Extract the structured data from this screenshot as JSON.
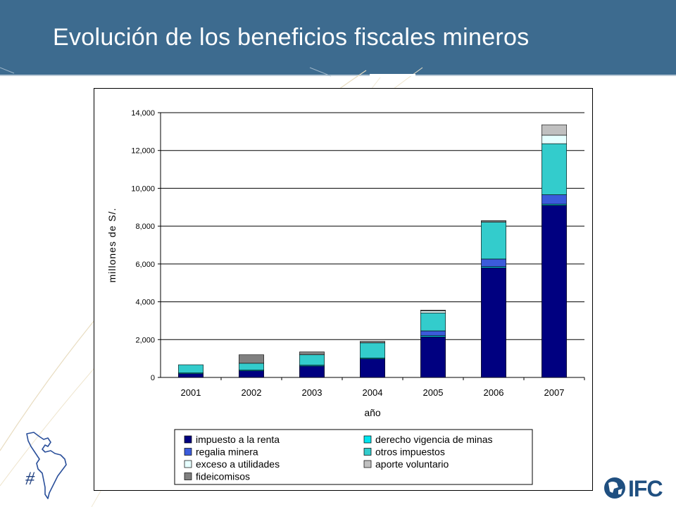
{
  "slide": {
    "title": "Evolución de los beneficios fiscales mineros",
    "number_symbol": "#",
    "logo_text": "IFC"
  },
  "colors": {
    "header": "#3d6b8f",
    "series": [
      "#000080",
      "#00e5ee",
      "#3b5bdb",
      "#33cccc",
      "#e6ffff",
      "#c0c0c0",
      "#808080"
    ]
  },
  "chart_data": {
    "type": "bar",
    "stacked": true,
    "xlabel": "año",
    "ylabel": "millones de S/.",
    "ylim": [
      0,
      14000
    ],
    "yticks": [
      0,
      2000,
      4000,
      6000,
      8000,
      10000,
      12000,
      14000
    ],
    "ytick_labels": [
      "0",
      "2,000",
      "4,000",
      "6,000",
      "8,000",
      "10,000",
      "12,000",
      "14,000"
    ],
    "categories": [
      "2001",
      "2002",
      "2003",
      "2004",
      "2005",
      "2006",
      "2007"
    ],
    "grid": "horizontal",
    "legend_position": "bottom",
    "series": [
      {
        "name": "impuesto a la renta",
        "color": "#000080",
        "values": [
          200,
          350,
          600,
          980,
          2150,
          5800,
          9100
        ]
      },
      {
        "name": "derecho vigencia de minas",
        "color": "#00e5ee",
        "values": [
          50,
          50,
          50,
          50,
          60,
          60,
          60
        ]
      },
      {
        "name": "regalia minera",
        "color": "#3b5bdb",
        "values": [
          0,
          0,
          0,
          0,
          250,
          400,
          500
        ]
      },
      {
        "name": "otros impuestos",
        "color": "#33cccc",
        "values": [
          420,
          350,
          550,
          800,
          950,
          1950,
          2700
        ]
      },
      {
        "name": "exceso a utilidades",
        "color": "#e6ffff",
        "values": [
          0,
          0,
          0,
          0,
          100,
          50,
          450
        ]
      },
      {
        "name": "aporte voluntario",
        "color": "#c0c0c0",
        "values": [
          0,
          0,
          0,
          0,
          0,
          0,
          550
        ]
      },
      {
        "name": "fideicomisos",
        "color": "#808080",
        "values": [
          0,
          450,
          150,
          80,
          50,
          30,
          0
        ]
      }
    ]
  }
}
